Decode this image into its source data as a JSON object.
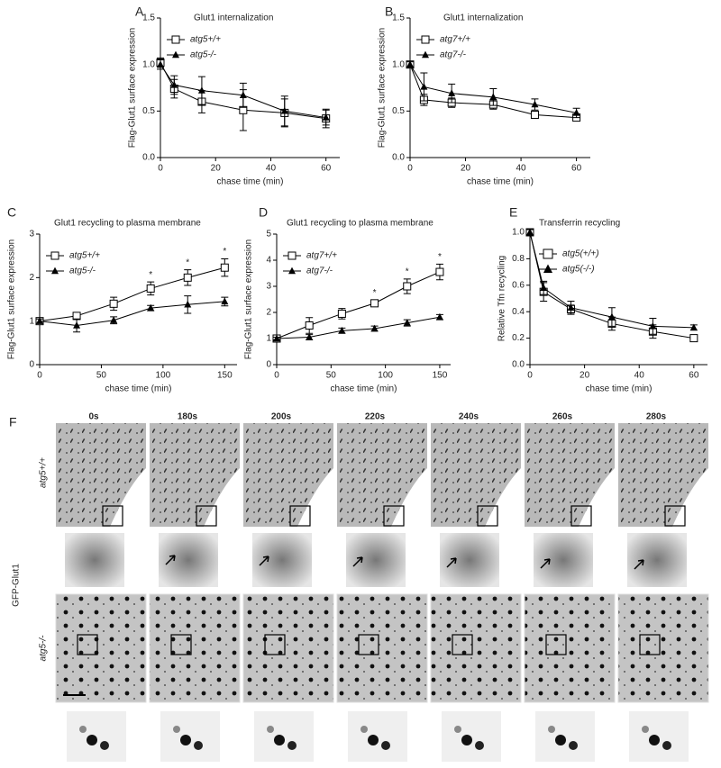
{
  "chart_data": [
    {
      "type": "line",
      "label": "A",
      "title": "Glut1 internalization",
      "xlabel": "chase time (min)",
      "ylabel": "Flag-Glut1 surface expression",
      "x": [
        0,
        5,
        15,
        30,
        45,
        60
      ],
      "xlim": [
        0,
        65
      ],
      "xticks": [
        0,
        20,
        40,
        60
      ],
      "ylim": [
        0,
        1.5
      ],
      "yticks": [
        {
          "value": 0,
          "label": "0.0"
        },
        {
          "value": 0.5,
          "label": "0.5"
        },
        {
          "value": 1,
          "label": "1.0"
        },
        {
          "value": 1.5,
          "label": "1.5"
        }
      ],
      "legend": "upper left",
      "series": [
        {
          "name": "atg5+/+",
          "color": "#000000",
          "marker": "open-square",
          "values": [
            1.02,
            0.74,
            0.6,
            0.51,
            0.48,
            0.42
          ],
          "errors": [
            0.05,
            0.1,
            0.12,
            0.22,
            0.15,
            0.1
          ]
        },
        {
          "name": "atg5-/-",
          "color": "#000000",
          "marker": "filled-triangle",
          "values": [
            1.0,
            0.78,
            0.72,
            0.67,
            0.5,
            0.43
          ],
          "errors": [
            0.05,
            0.1,
            0.15,
            0.13,
            0.16,
            0.08
          ]
        }
      ]
    },
    {
      "type": "line",
      "label": "B",
      "title": "Glut1 internalization",
      "xlabel": "chase time (min)",
      "ylabel": "Flag-Glut1 surface expression",
      "x": [
        0,
        5,
        15,
        30,
        45,
        60
      ],
      "xlim": [
        0,
        65
      ],
      "xticks": [
        0,
        20,
        40,
        60
      ],
      "ylim": [
        0,
        1.5
      ],
      "yticks": [
        {
          "value": 0,
          "label": "0.0"
        },
        {
          "value": 0.5,
          "label": "0.5"
        },
        {
          "value": 1,
          "label": "1.0"
        },
        {
          "value": 1.5,
          "label": "1.5"
        }
      ],
      "legend": "upper left",
      "series": [
        {
          "name": "atg7+/+",
          "color": "#000000",
          "marker": "open-square",
          "values": [
            1.0,
            0.62,
            0.59,
            0.57,
            0.46,
            0.43
          ],
          "errors": [
            0.03,
            0.06,
            0.05,
            0.05,
            0.03,
            0.03
          ]
        },
        {
          "name": "atg7-/-",
          "color": "#000000",
          "marker": "filled-triangle",
          "values": [
            1.0,
            0.76,
            0.69,
            0.65,
            0.57,
            0.48
          ],
          "errors": [
            0.03,
            0.15,
            0.1,
            0.09,
            0.06,
            0.05
          ]
        }
      ]
    },
    {
      "type": "line",
      "label": "C",
      "title": "Glut1 recycling to plasma membrane",
      "xlabel": "chase time (min)",
      "ylabel": "Flag-Glut1 surface expression",
      "x": [
        0,
        30,
        60,
        90,
        120,
        150
      ],
      "xlim": [
        0,
        160
      ],
      "xticks": [
        0,
        50,
        100,
        150
      ],
      "ylim": [
        0,
        3
      ],
      "yticks": [
        0,
        1,
        2,
        3
      ],
      "legend": "upper left",
      "series": [
        {
          "name": "atg5+/+",
          "color": "#000000",
          "marker": "open-square",
          "values": [
            1.0,
            1.12,
            1.4,
            1.75,
            2.0,
            2.23
          ],
          "errors": [
            0.05,
            0.08,
            0.15,
            0.15,
            0.18,
            0.2
          ]
        },
        {
          "name": "atg5-/-",
          "color": "#000000",
          "marker": "filled-triangle",
          "values": [
            1.0,
            0.9,
            1.02,
            1.3,
            1.38,
            1.45
          ],
          "errors": [
            0.05,
            0.15,
            0.08,
            0.06,
            0.2,
            0.1
          ]
        }
      ],
      "annotations": [
        {
          "x": 90,
          "text": "*"
        },
        {
          "x": 120,
          "text": "*"
        },
        {
          "x": 150,
          "text": "*"
        }
      ]
    },
    {
      "type": "line",
      "label": "D",
      "title": "Glut1 recycling to plasma membrane",
      "xlabel": "chase time (min)",
      "ylabel": "Flag-Glut1 surface expression",
      "x": [
        0,
        30,
        60,
        90,
        120,
        150
      ],
      "xlim": [
        0,
        160
      ],
      "xticks": [
        0,
        50,
        100,
        150
      ],
      "ylim": [
        0,
        5
      ],
      "yticks": [
        0,
        1,
        2,
        3,
        4,
        5
      ],
      "legend": "upper left",
      "series": [
        {
          "name": "atg7+/+",
          "color": "#000000",
          "marker": "open-square",
          "values": [
            1.0,
            1.5,
            1.95,
            2.35,
            3.0,
            3.55
          ],
          "errors": [
            0.05,
            0.3,
            0.2,
            0.12,
            0.28,
            0.3
          ]
        },
        {
          "name": "atg7-/-",
          "color": "#000000",
          "marker": "filled-triangle",
          "values": [
            1.0,
            1.05,
            1.3,
            1.38,
            1.6,
            1.82
          ],
          "errors": [
            0.05,
            0.1,
            0.1,
            0.1,
            0.12,
            0.1
          ]
        }
      ],
      "annotations": [
        {
          "x": 90,
          "text": "*"
        },
        {
          "x": 120,
          "text": "*"
        },
        {
          "x": 150,
          "text": "*"
        }
      ]
    },
    {
      "type": "line",
      "label": "E",
      "title": "Transferrin recycling",
      "xlabel": "chase time (min)",
      "ylabel": "Relative Tfn recycling",
      "x": [
        0,
        5,
        15,
        30,
        45,
        60
      ],
      "xlim": [
        0,
        65
      ],
      "xticks": [
        0,
        20,
        40,
        60
      ],
      "ylim": [
        0,
        1
      ],
      "yticks": [
        {
          "value": 0,
          "label": "0.0"
        },
        {
          "value": 0.2,
          "label": "0.2"
        },
        {
          "value": 0.4,
          "label": "0.4"
        },
        {
          "value": 0.6,
          "label": "0.6"
        },
        {
          "value": 0.8,
          "label": "0.8"
        },
        {
          "value": 1,
          "label": "1.0"
        }
      ],
      "legend": "upper left",
      "series": [
        {
          "name": "atg5(+/+)",
          "color": "#000000",
          "marker": "open-square",
          "values": [
            1.0,
            0.55,
            0.42,
            0.31,
            0.25,
            0.2
          ],
          "errors": [
            0.02,
            0.07,
            0.03,
            0.05,
            0.05,
            0.02
          ]
        },
        {
          "name": "atg5(-/-)",
          "color": "#000000",
          "marker": "filled-triangle",
          "values": [
            1.0,
            0.58,
            0.43,
            0.36,
            0.29,
            0.28
          ],
          "errors": [
            0.02,
            0.05,
            0.05,
            0.07,
            0.06,
            0.02
          ]
        }
      ]
    }
  ],
  "panel_f": {
    "label": "F",
    "times": [
      "0s",
      "180s",
      "200s",
      "220s",
      "240s",
      "260s",
      "280s"
    ],
    "row_labels": [
      "atg5+/+",
      "atg5-/-"
    ],
    "side_label": "GFP-Glut1"
  }
}
